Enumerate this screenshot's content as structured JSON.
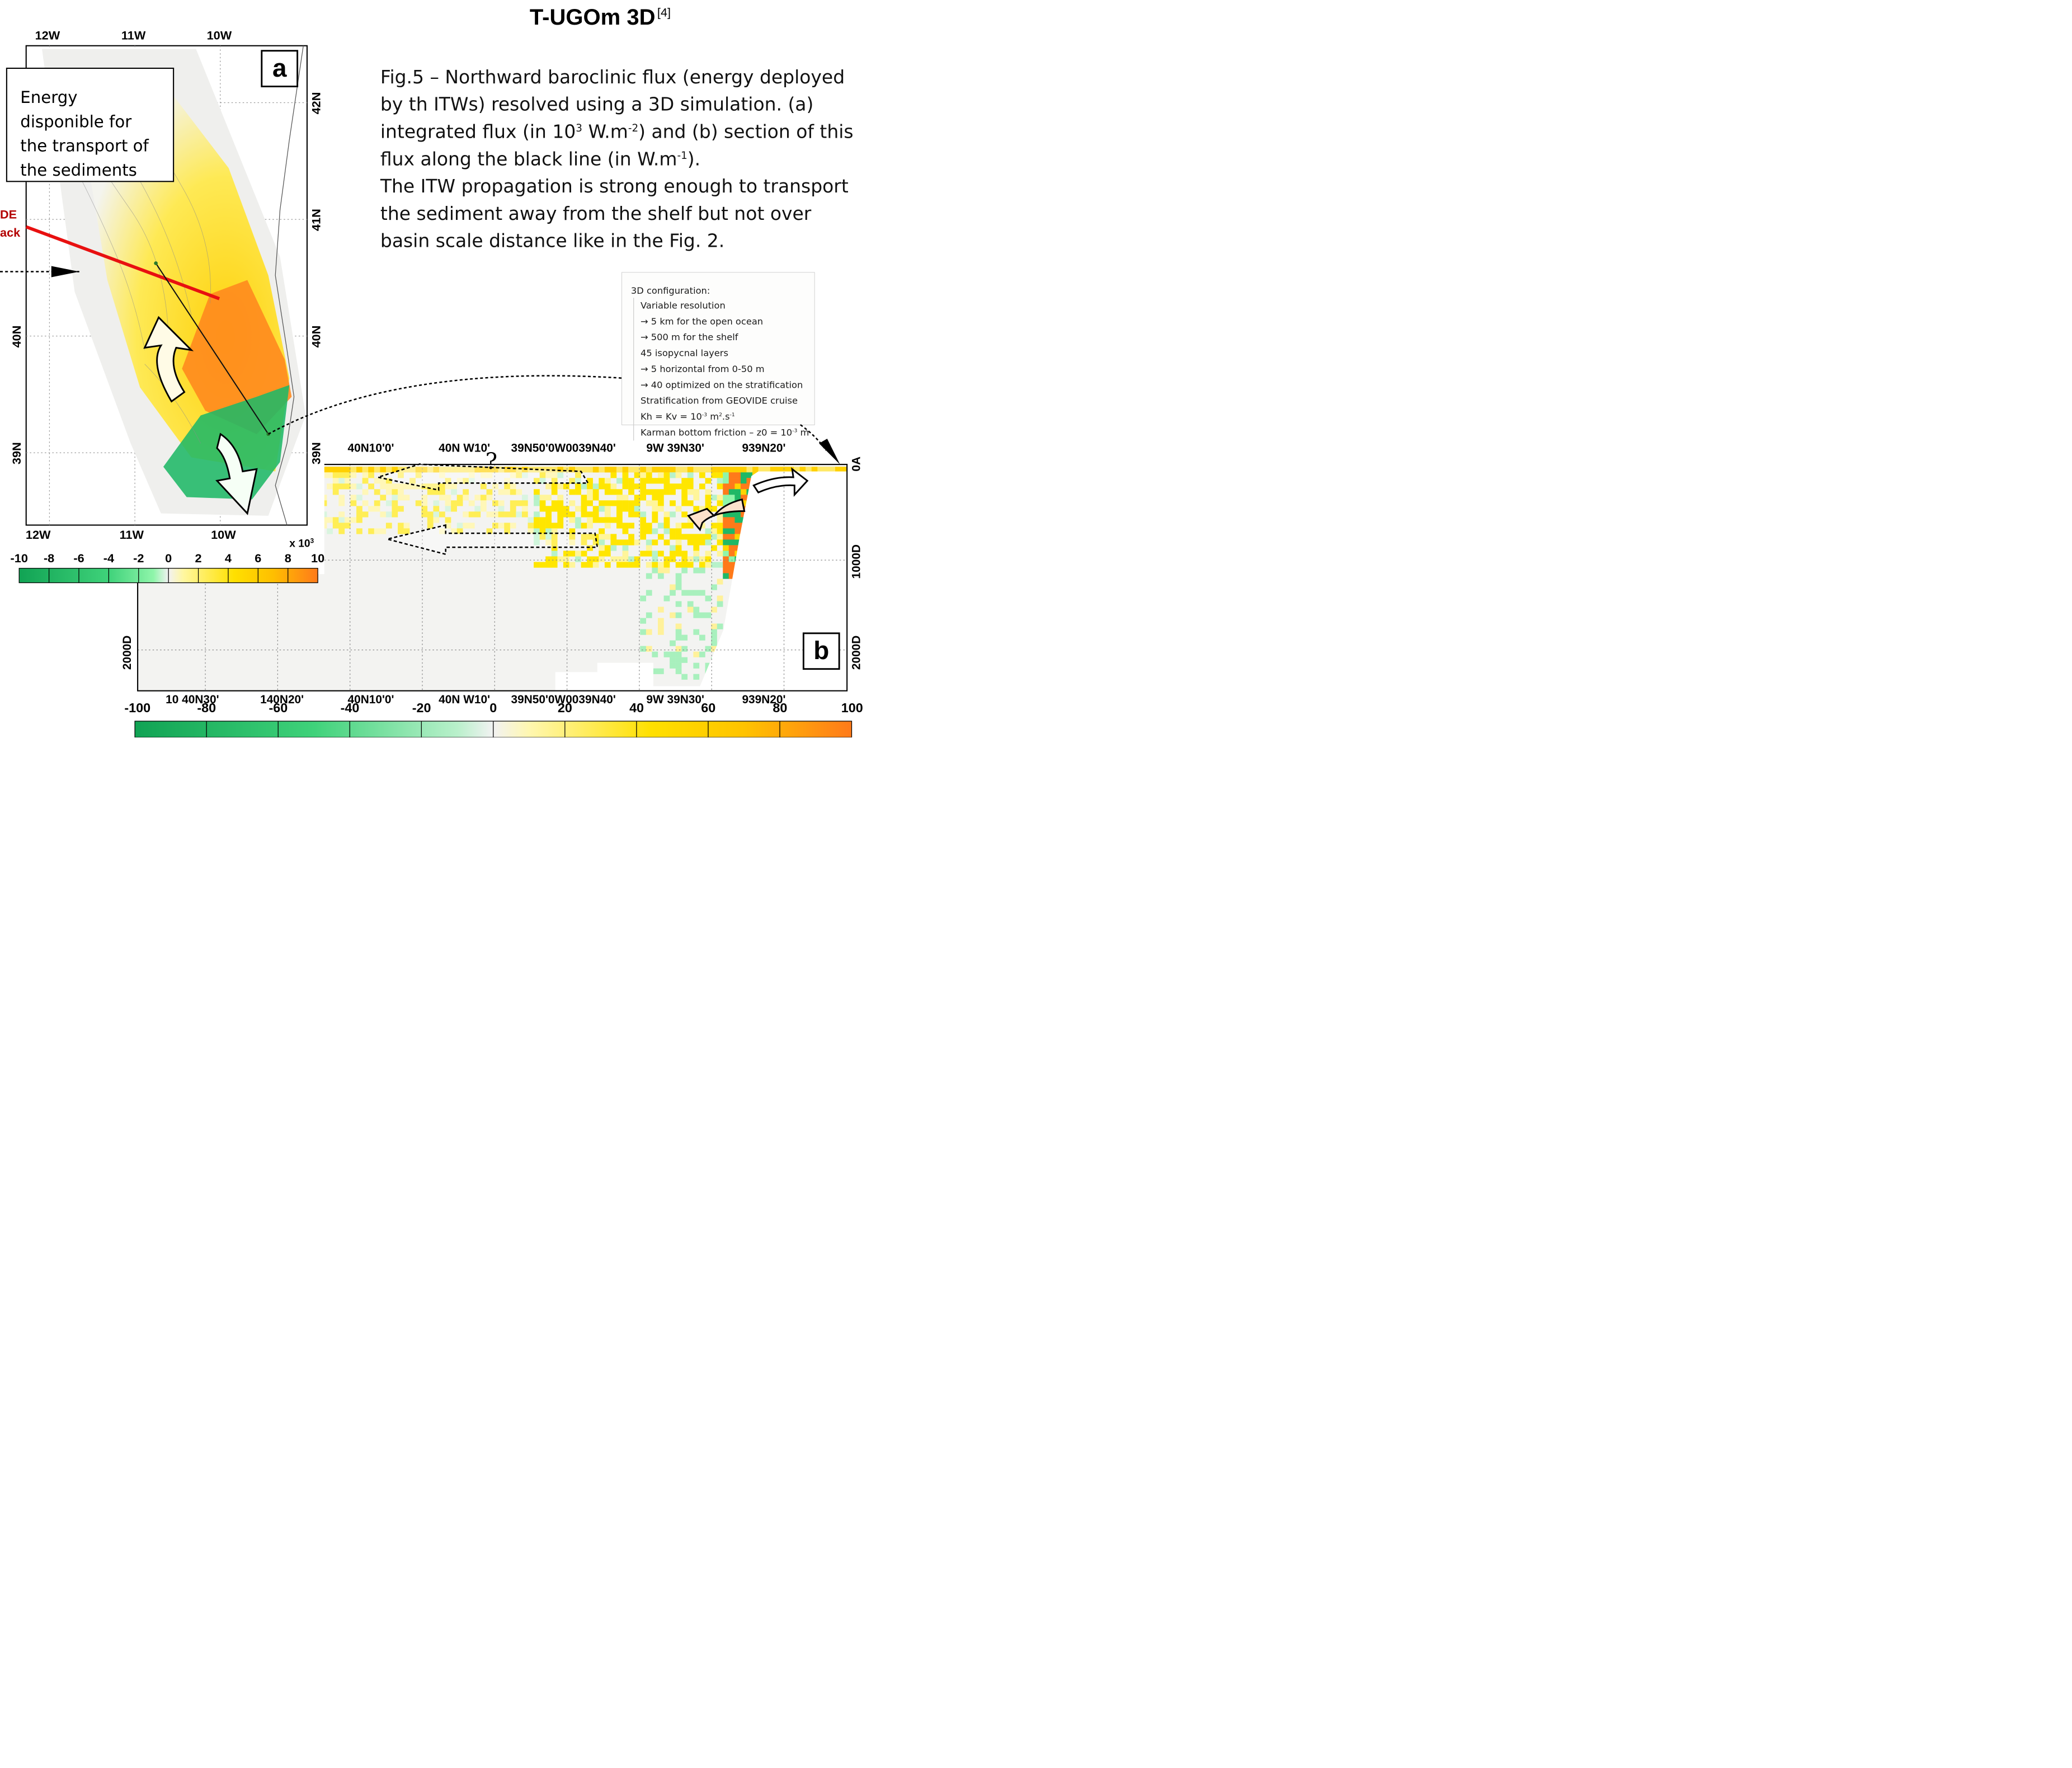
{
  "title": {
    "text": "T-UGOm 3D",
    "ref": "[4]"
  },
  "caption": {
    "line1": "Fig.5 – Northward baroclinic flux (energy deployed",
    "line2": "by th ITWs) resolved using a 3D simulation. (a)",
    "line3a": "integrated flux (in 10",
    "line3sup": "3",
    "line3b": " W.m",
    "line3sup2": "-2",
    "line3c": ") and (b) section of this",
    "line4a": "flux along the black line (in W.m",
    "line4sup": "-1",
    "line4b": ").",
    "line5": "The ITW propagation is strong enough to transport",
    "line6": "the sediment away from the shelf but not over",
    "line7": "basin scale distance like in the Fig. 2."
  },
  "config": {
    "head": "3D configuration:",
    "items": [
      "Variable resolution",
      "→ 5 km for the open ocean",
      "→ 500 m for the shelf",
      "45 isopycnal layers",
      "→ 5 horizontal from 0-50 m",
      "→ 40 optimized on the stratification",
      "Stratification from GEOVIDE cruise"
    ],
    "kh": {
      "a": "Kh = Kv = 10",
      "sup": "-3",
      "b": " m",
      "sup2": "2",
      "c": ".s",
      "sup3": "-1"
    },
    "karman": {
      "a": "Karman bottom friction – z0 = 10",
      "sup": "-3",
      "b": " m"
    }
  },
  "energy_box": {
    "lines": [
      "Energy",
      "disponible for",
      "the transport of",
      "the sediments"
    ]
  },
  "red_track_label": {
    "line1": "DE",
    "line2": "ack"
  },
  "panel_a": {
    "label": "a",
    "lon_labels": [
      "12W",
      "11W",
      "10W"
    ],
    "lat_labels": [
      "42N",
      "41N",
      "40N",
      "39N"
    ],
    "colorbar_multiplier": "x 10",
    "colorbar_multiplier_sup": "3",
    "colorbar_ticks": [
      "-10",
      "-8",
      "-6",
      "-4",
      "-2",
      "0",
      "2",
      "4",
      "6",
      "8",
      "10"
    ]
  },
  "panel_b": {
    "label": "b",
    "top_axis_labels": [
      "40N10'0'",
      "40N W10'",
      "39N50'0W0039N40'",
      "9W 39N30'",
      "939N20'"
    ],
    "bottom_axis_labels": [
      "10 40N30'",
      "140N20'",
      "40N10'0'",
      "40N W10'",
      "39N50'0W0039N40'",
      "9W 39N30'",
      "939N20'"
    ],
    "right_depth_labels": [
      "0A",
      "1000D",
      "2000D"
    ],
    "left_depth_labels": [
      "2000D"
    ],
    "question_mark": "?",
    "colorbar_ticks": [
      "-100",
      "-80",
      "-60",
      "-40",
      "-20",
      "0",
      "20",
      "40",
      "60",
      "80",
      "100"
    ]
  },
  "colors": {
    "green": "#1aaa55",
    "yellow": "#ffe500",
    "orange": "#ff7a1a",
    "red_track": "#e81010"
  }
}
